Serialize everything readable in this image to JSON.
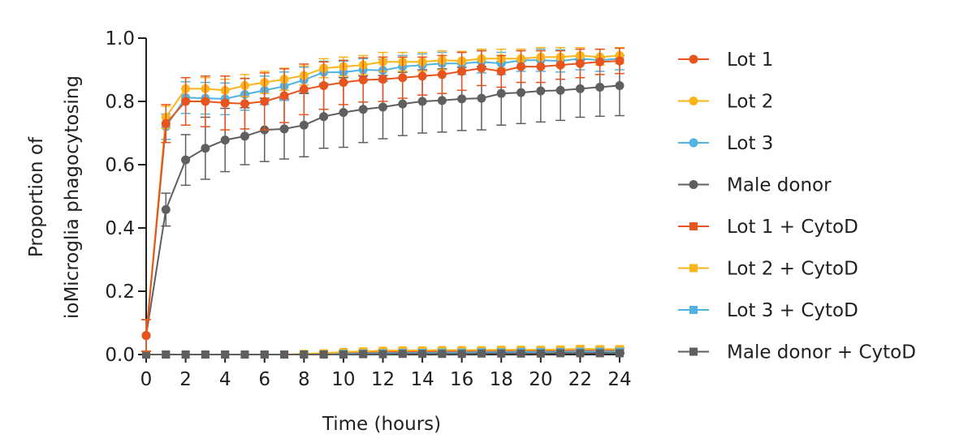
{
  "chart_data": {
    "type": "line",
    "title": "",
    "xlabel": "Time (hours)",
    "ylabel_lines": [
      "Proportion of",
      "ioMicroglia phagocytosing"
    ],
    "xlim": [
      0,
      24
    ],
    "ylim": [
      0,
      1.0
    ],
    "x_ticks": [
      0,
      2,
      4,
      6,
      8,
      10,
      12,
      14,
      16,
      18,
      20,
      22,
      24
    ],
    "y_ticks": [
      "0.0",
      "0.2",
      "0.4",
      "0.6",
      "0.8",
      "1.0"
    ],
    "grid": false,
    "legend_position": "right",
    "x": [
      0,
      1,
      2,
      3,
      4,
      5,
      6,
      7,
      8,
      9,
      10,
      11,
      12,
      13,
      14,
      15,
      16,
      17,
      18,
      19,
      20,
      21,
      22,
      23,
      24
    ],
    "series": [
      {
        "name": "Lot 1 + CytoD",
        "marker": "square",
        "color": "#e8541e",
        "values": [
          0,
          0,
          0,
          0,
          0,
          0,
          0,
          0,
          0,
          0.003,
          0.005,
          0.007,
          0.008,
          0.008,
          0.009,
          0.009,
          0.009,
          0.01,
          0.01,
          0.01,
          0.011,
          0.011,
          0.012,
          0.012,
          0.012
        ],
        "error": [
          0,
          0,
          0,
          0,
          0,
          0,
          0,
          0,
          0,
          0.004,
          0.005,
          0.006,
          0.006,
          0.006,
          0.006,
          0.006,
          0.006,
          0.006,
          0.006,
          0.006,
          0.006,
          0.006,
          0.007,
          0.007,
          0.007
        ]
      },
      {
        "name": "Lot 2 + CytoD",
        "marker": "square",
        "color": "#f9b51b",
        "values": [
          0,
          0,
          0,
          0,
          0,
          0,
          0,
          0,
          0.002,
          0.004,
          0.008,
          0.01,
          0.012,
          0.013,
          0.013,
          0.014,
          0.014,
          0.014,
          0.015,
          0.015,
          0.015,
          0.016,
          0.018,
          0.017,
          0.017
        ],
        "error": [
          0,
          0,
          0,
          0,
          0,
          0,
          0,
          0,
          0.003,
          0.004,
          0.005,
          0.005,
          0.006,
          0.006,
          0.006,
          0.006,
          0.006,
          0.006,
          0.006,
          0.006,
          0.006,
          0.006,
          0.007,
          0.007,
          0.007
        ]
      },
      {
        "name": "Lot 3 + CytoD",
        "marker": "square",
        "color": "#4fb3e3",
        "values": [
          0,
          0,
          0,
          0,
          0,
          0,
          0,
          0,
          0,
          0,
          0.002,
          0.003,
          0.004,
          0.005,
          0.005,
          0.006,
          0.006,
          0.007,
          0.007,
          0.008,
          0.008,
          0.008,
          0.009,
          0.009,
          0.009
        ],
        "error": [
          0,
          0,
          0,
          0,
          0,
          0,
          0,
          0,
          0,
          0,
          0.003,
          0.003,
          0.003,
          0.003,
          0.004,
          0.004,
          0.004,
          0.004,
          0.004,
          0.004,
          0.004,
          0.004,
          0.004,
          0.004,
          0.004
        ]
      },
      {
        "name": "Male donor + CytoD",
        "marker": "square",
        "color": "#5f5f5f",
        "values": [
          0,
          0,
          0,
          0,
          0,
          0,
          0,
          0,
          0,
          0,
          0,
          0.001,
          0.001,
          0.002,
          0.002,
          0.002,
          0.002,
          0.003,
          0.003,
          0.003,
          0.003,
          0.004,
          0.004,
          0.004,
          0.004
        ],
        "error": [
          0,
          0,
          0,
          0,
          0,
          0,
          0,
          0,
          0,
          0,
          0,
          0.002,
          0.002,
          0.002,
          0.002,
          0.002,
          0.002,
          0.002,
          0.002,
          0.002,
          0.002,
          0.002,
          0.002,
          0.002,
          0.002
        ]
      },
      {
        "name": "Male donor",
        "marker": "circle",
        "color": "#5f5f5f",
        "values": [
          0.06,
          0.458,
          0.615,
          0.652,
          0.678,
          0.69,
          0.71,
          0.713,
          0.725,
          0.752,
          0.765,
          0.775,
          0.782,
          0.792,
          0.8,
          0.803,
          0.808,
          0.81,
          0.825,
          0.828,
          0.833,
          0.835,
          0.84,
          0.845,
          0.85
        ],
        "error": [
          0.05,
          0.052,
          0.08,
          0.098,
          0.1,
          0.09,
          0.1,
          0.095,
          0.1,
          0.1,
          0.11,
          0.105,
          0.1,
          0.1,
          0.1,
          0.1,
          0.1,
          0.1,
          0.1,
          0.098,
          0.098,
          0.095,
          0.09,
          0.092,
          0.095
        ]
      },
      {
        "name": "Lot 3",
        "marker": "circle",
        "color": "#4fb3e3",
        "values": [
          0.06,
          0.72,
          0.812,
          0.81,
          0.808,
          0.822,
          0.835,
          0.848,
          0.868,
          0.892,
          0.892,
          0.9,
          0.898,
          0.91,
          0.915,
          0.92,
          0.92,
          0.925,
          0.92,
          0.93,
          0.93,
          0.928,
          0.935,
          0.93,
          0.935
        ],
        "error": [
          0.05,
          0.04,
          0.05,
          0.05,
          0.05,
          0.05,
          0.045,
          0.045,
          0.04,
          0.035,
          0.035,
          0.035,
          0.035,
          0.035,
          0.035,
          0.035,
          0.035,
          0.035,
          0.035,
          0.035,
          0.035,
          0.035,
          0.035,
          0.035,
          0.035
        ]
      },
      {
        "name": "Lot 2",
        "marker": "circle",
        "color": "#f9b51b",
        "values": [
          0.06,
          0.75,
          0.84,
          0.84,
          0.835,
          0.85,
          0.86,
          0.87,
          0.882,
          0.905,
          0.91,
          0.915,
          0.925,
          0.925,
          0.925,
          0.93,
          0.928,
          0.935,
          0.935,
          0.935,
          0.94,
          0.94,
          0.945,
          0.94,
          0.945
        ],
        "error": [
          0.05,
          0.035,
          0.035,
          0.035,
          0.035,
          0.035,
          0.035,
          0.035,
          0.03,
          0.03,
          0.03,
          0.03,
          0.03,
          0.03,
          0.03,
          0.03,
          0.03,
          0.03,
          0.03,
          0.03,
          0.03,
          0.03,
          0.025,
          0.025,
          0.025
        ]
      },
      {
        "name": "Lot 1",
        "marker": "circle",
        "color": "#e8541e",
        "values": [
          0.06,
          0.73,
          0.8,
          0.8,
          0.795,
          0.793,
          0.8,
          0.818,
          0.838,
          0.85,
          0.86,
          0.868,
          0.87,
          0.875,
          0.88,
          0.885,
          0.895,
          0.905,
          0.895,
          0.91,
          0.91,
          0.915,
          0.92,
          0.925,
          0.928
        ],
        "error": [
          0.05,
          0.06,
          0.075,
          0.08,
          0.085,
          0.08,
          0.09,
          0.085,
          0.08,
          0.075,
          0.07,
          0.07,
          0.07,
          0.065,
          0.06,
          0.06,
          0.06,
          0.055,
          0.05,
          0.05,
          0.05,
          0.045,
          0.045,
          0.04,
          0.04
        ]
      }
    ],
    "legend_order": [
      "Lot 1",
      "Lot 2",
      "Lot 3",
      "Male donor",
      "Lot 1 + CytoD",
      "Lot 2 + CytoD",
      "Lot 3 + CytoD",
      "Male donor + CytoD"
    ]
  }
}
